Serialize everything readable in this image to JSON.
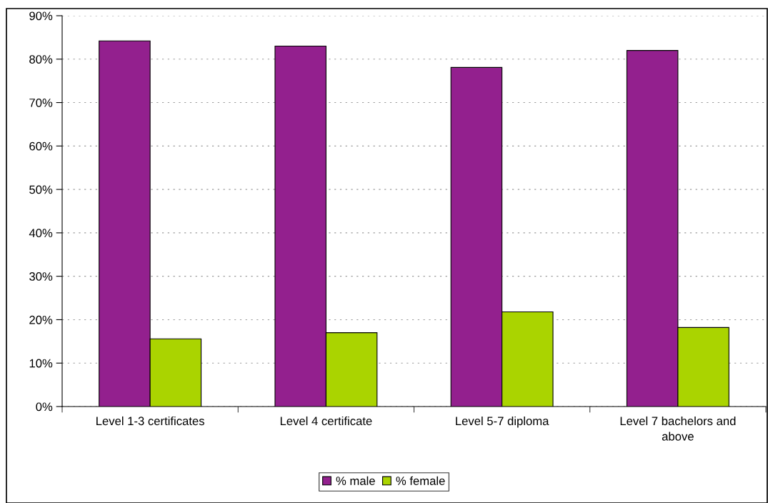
{
  "chart_data": {
    "type": "bar",
    "categories": [
      "Level 1-3 certificates",
      "Level 4 certificate",
      "Level 5-7 diploma",
      "Level 7 bachelors and\nabove"
    ],
    "series": [
      {
        "name": "% male",
        "color": "#93208e",
        "values": [
          84.2,
          83.0,
          78.1,
          82.0
        ]
      },
      {
        "name": "% female",
        "color": "#aad400",
        "values": [
          15.6,
          17.0,
          21.8,
          18.2
        ]
      }
    ],
    "ylim": [
      0,
      90
    ],
    "yticks": [
      {
        "value": 0,
        "label": "0%"
      },
      {
        "value": 10,
        "label": "10%"
      },
      {
        "value": 20,
        "label": "20%"
      },
      {
        "value": 30,
        "label": "30%"
      },
      {
        "value": 40,
        "label": "40%"
      },
      {
        "value": 50,
        "label": "50%"
      },
      {
        "value": 60,
        "label": "60%"
      },
      {
        "value": 70,
        "label": "70%"
      },
      {
        "value": 80,
        "label": "80%"
      },
      {
        "value": 90,
        "label": "90%"
      }
    ],
    "grid": "y",
    "legend": "bottom"
  }
}
